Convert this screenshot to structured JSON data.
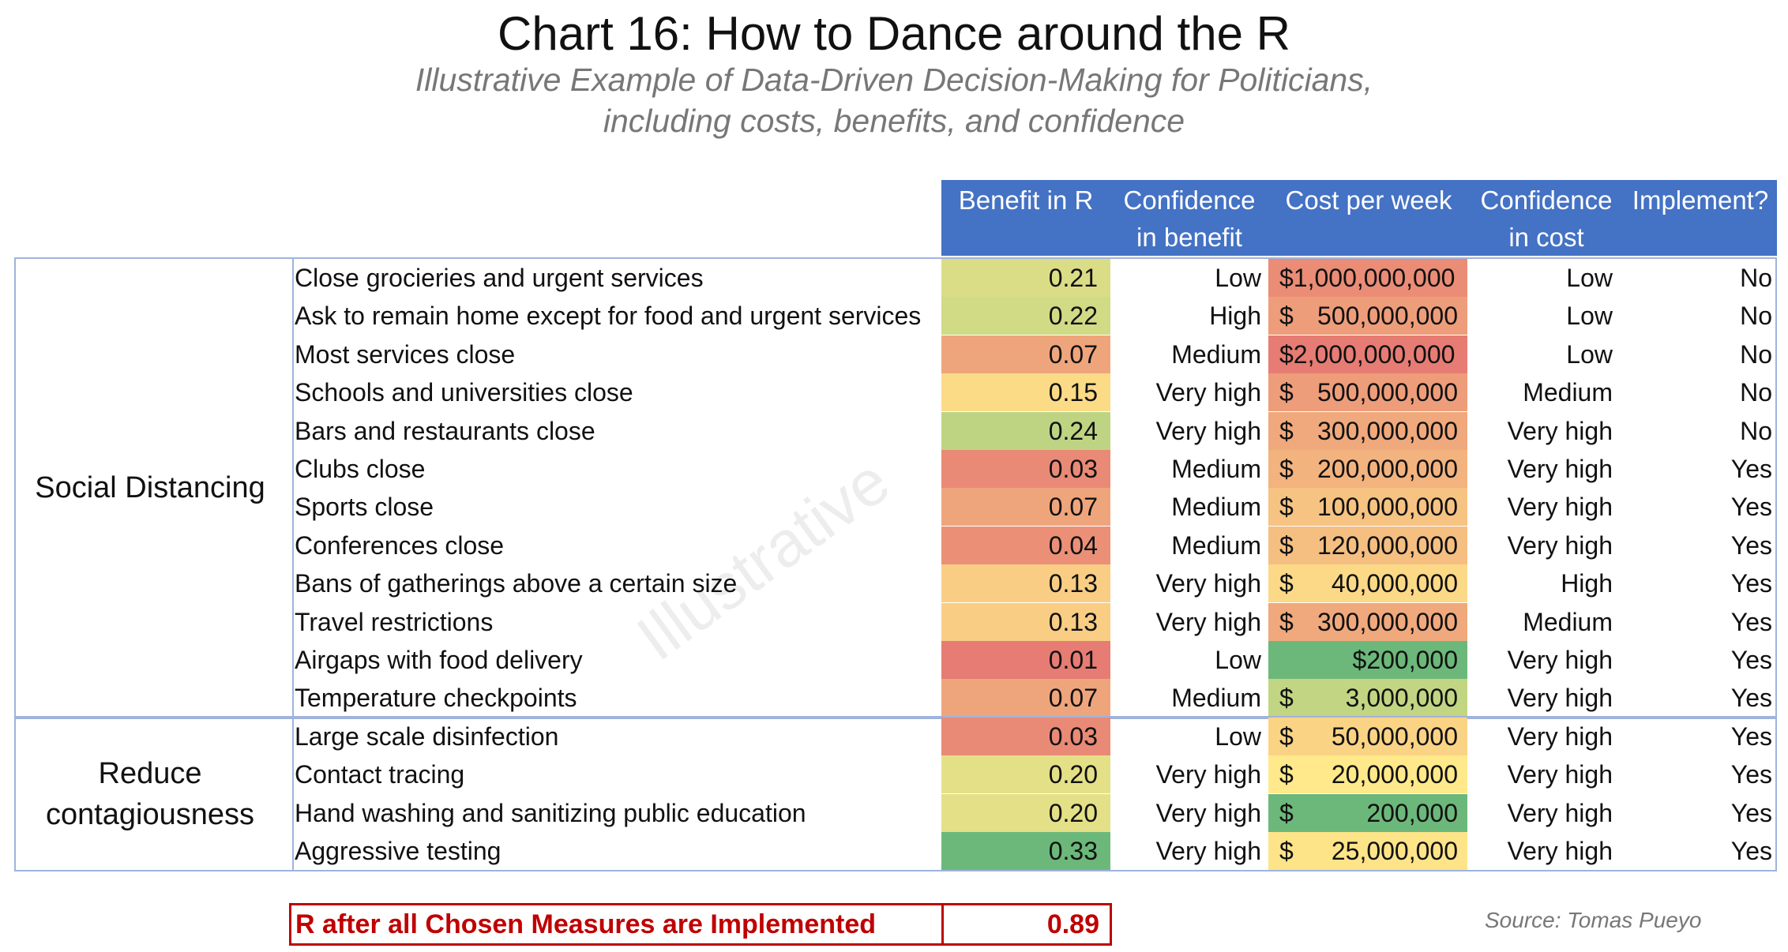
{
  "chart_data": {
    "type": "table",
    "title": "Chart 16: How to Dance around the R",
    "subtitle_lines": [
      "Illustrative Example of Data-Driven Decision-Making for Politicians,",
      "including costs, benefits, and confidence"
    ],
    "columns": [
      "Benefit in R",
      "Confidence\nin benefit",
      "Cost per week",
      "Confidence\nin cost",
      "Implement?"
    ],
    "groups": [
      {
        "name": "Social Distancing",
        "rows": [
          {
            "measure": "Close grocieries and urgent services",
            "benefit": "0.21",
            "conf_benefit": "Low",
            "cost_symbol": "$1,000,000,000",
            "cost_amount": "",
            "cost_value": 1000000000,
            "conf_cost": "Low",
            "implement": "No"
          },
          {
            "measure": "Ask to remain home except for food and urgent services",
            "benefit": "0.22",
            "conf_benefit": "High",
            "cost_symbol": "$",
            "cost_amount": "500,000,000",
            "cost_value": 500000000,
            "conf_cost": "Low",
            "implement": "No"
          },
          {
            "measure": "Most services close",
            "benefit": "0.07",
            "conf_benefit": "Medium",
            "cost_symbol": "$2,000,000,000",
            "cost_amount": "",
            "cost_value": 2000000000,
            "conf_cost": "Low",
            "implement": "No"
          },
          {
            "measure": "Schools and universities close",
            "benefit": "0.15",
            "conf_benefit": "Very high",
            "cost_symbol": "$",
            "cost_amount": "500,000,000",
            "cost_value": 500000000,
            "conf_cost": "Medium",
            "implement": "No"
          },
          {
            "measure": "Bars and restaurants close",
            "benefit": "0.24",
            "conf_benefit": "Very high",
            "cost_symbol": "$",
            "cost_amount": "300,000,000",
            "cost_value": 300000000,
            "conf_cost": "Very high",
            "implement": "No"
          },
          {
            "measure": "Clubs close",
            "benefit": "0.03",
            "conf_benefit": "Medium",
            "cost_symbol": "$",
            "cost_amount": "200,000,000",
            "cost_value": 200000000,
            "conf_cost": "Very high",
            "implement": "Yes"
          },
          {
            "measure": "Sports close",
            "benefit": "0.07",
            "conf_benefit": "Medium",
            "cost_symbol": "$",
            "cost_amount": "100,000,000",
            "cost_value": 100000000,
            "conf_cost": "Very high",
            "implement": "Yes"
          },
          {
            "measure": "Conferences close",
            "benefit": "0.04",
            "conf_benefit": "Medium",
            "cost_symbol": "$",
            "cost_amount": "120,000,000",
            "cost_value": 120000000,
            "conf_cost": "Very high",
            "implement": "Yes"
          },
          {
            "measure": "Bans of gatherings above a certain size",
            "benefit": "0.13",
            "conf_benefit": "Very high",
            "cost_symbol": "$",
            "cost_amount": "40,000,000",
            "cost_value": 40000000,
            "conf_cost": "High",
            "implement": "Yes"
          },
          {
            "measure": "Travel restrictions",
            "benefit": "0.13",
            "conf_benefit": "Very high",
            "cost_symbol": "$",
            "cost_amount": "300,000,000",
            "cost_value": 300000000,
            "conf_cost": "Medium",
            "implement": "Yes"
          },
          {
            "measure": "Airgaps with food delivery",
            "benefit": "0.01",
            "conf_benefit": "Low",
            "cost_symbol": "",
            "cost_amount": "$200,000",
            "cost_value": 200000,
            "conf_cost": "Very high",
            "implement": "Yes"
          },
          {
            "measure": "Temperature checkpoints",
            "benefit": "0.07",
            "conf_benefit": "Medium",
            "cost_symbol": "$",
            "cost_amount": "3,000,000",
            "cost_value": 3000000,
            "conf_cost": "Very high",
            "implement": "Yes"
          }
        ]
      },
      {
        "name": "Reduce\ncontagiousness",
        "rows": [
          {
            "measure": "Large scale disinfection",
            "benefit": "0.03",
            "conf_benefit": "Low",
            "cost_symbol": "$",
            "cost_amount": "50,000,000",
            "cost_value": 50000000,
            "conf_cost": "Very high",
            "implement": "Yes"
          },
          {
            "measure": "Contact tracing",
            "benefit": "0.20",
            "conf_benefit": "Very high",
            "cost_symbol": "$",
            "cost_amount": "20,000,000",
            "cost_value": 20000000,
            "conf_cost": "Very high",
            "implement": "Yes"
          },
          {
            "measure": "Hand washing and sanitizing public education",
            "benefit": "0.20",
            "conf_benefit": "Very high",
            "cost_symbol": "$",
            "cost_amount": "200,000",
            "cost_value": 200000,
            "conf_cost": "Very high",
            "implement": "Yes"
          },
          {
            "measure": "Aggressive testing",
            "benefit": "0.33",
            "conf_benefit": "Very high",
            "cost_symbol": "$",
            "cost_amount": "25,000,000",
            "cost_value": 25000000,
            "conf_cost": "Very high",
            "implement": "Yes"
          }
        ]
      }
    ],
    "summary": {
      "label": "R after all Chosen Measures are Implemented",
      "value": "0.89"
    },
    "watermark": "Illustrative",
    "source": "Source: Tomas Pueyo",
    "colors": {
      "header": "#4472c4",
      "border": "#9fb3dc",
      "summary": "#c00000",
      "scale_low": "#e67c73",
      "scale_mid": "#ffe98a",
      "scale_high": "#6cb87a"
    }
  }
}
